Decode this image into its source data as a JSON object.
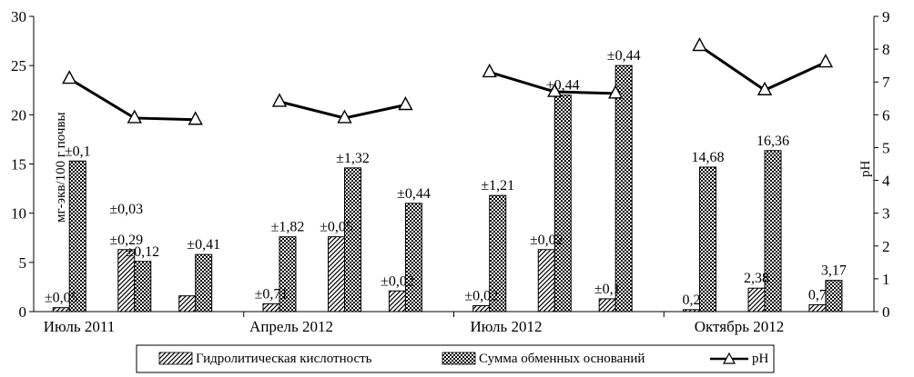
{
  "chart_data": {
    "type": "bar",
    "title": "",
    "groups": [
      "Июль 2011",
      "Апрель 2012",
      "Июль 2012",
      "Октябрь 2012"
    ],
    "ylabel_left": "мг-экв/100 г почвы",
    "ylabel_right": "pH",
    "ylim_left": [
      0,
      30
    ],
    "yticks_left": [
      "0",
      "5",
      "10",
      "15",
      "20",
      "25",
      "30"
    ],
    "ylim_right": [
      0,
      9
    ],
    "yticks_right": [
      "0",
      "1",
      "2",
      "3",
      "4",
      "5",
      "6",
      "7",
      "8",
      "9"
    ],
    "grid": false,
    "legend_position": "bottom",
    "series": [
      {
        "name": "Гидролитическая кислотность",
        "pattern": "diagonal-hatch",
        "axis": "left",
        "values": [
          0.4,
          6.3,
          1.6,
          0.8,
          7.6,
          2.1,
          0.6,
          6.3,
          1.3,
          0.2,
          2.38,
          0.7
        ]
      },
      {
        "name": "Сумма обменных оснований",
        "pattern": "checker",
        "axis": "left",
        "values": [
          15.3,
          5.1,
          5.8,
          7.6,
          14.6,
          11.0,
          11.8,
          22.0,
          25.0,
          14.68,
          16.36,
          3.17
        ]
      },
      {
        "name": "pH",
        "type": "line",
        "marker": "triangle",
        "axis": "right",
        "values": [
          7.1,
          5.9,
          5.85,
          6.4,
          5.9,
          6.3,
          7.3,
          6.7,
          6.65,
          8.1,
          6.75,
          7.6
        ]
      }
    ],
    "annotations": [
      {
        "text": "±0,05",
        "series": "Гидролитическая кислотность",
        "index": 0
      },
      {
        "text": "±0,1",
        "series": "Сумма обменных оснований",
        "index": 0
      },
      {
        "text": "±0,29",
        "series": "Гидролитическая кислотность",
        "index": 1
      },
      {
        "text": "±0,03",
        "series": "Гидролитическая кислотность",
        "index": 1
      },
      {
        "text": "±0,12",
        "series": "Сумма обменных оснований",
        "index": 1
      },
      {
        "text": "±0,41",
        "series": "Сумма обменных оснований",
        "index": 2
      },
      {
        "text": "±0,71",
        "series": "Гидролитическая кислотность",
        "index": 3
      },
      {
        "text": "±1,82",
        "series": "Сумма обменных оснований",
        "index": 3
      },
      {
        "text": "±0,05",
        "series": "Гидролитическая кислотность",
        "index": 4
      },
      {
        "text": "±1,32",
        "series": "Сумма обменных оснований",
        "index": 4
      },
      {
        "text": "±0,02",
        "series": "Гидролитическая кислотность",
        "index": 5
      },
      {
        "text": "±0,44",
        "series": "Сумма обменных оснований",
        "index": 5
      },
      {
        "text": "±0,02",
        "series": "Гидролитическая кислотность",
        "index": 6
      },
      {
        "text": "±1,21",
        "series": "Сумма обменных оснований",
        "index": 6
      },
      {
        "text": "±0,02",
        "series": "Гидролитическая кислотность",
        "index": 7
      },
      {
        "text": "±0,44",
        "series": "Сумма обменных оснований",
        "index": 7
      },
      {
        "text": "±0,1",
        "series": "Гидролитическая кислотность",
        "index": 8
      },
      {
        "text": "±0,44",
        "series": "Сумма обменных оснований",
        "index": 8
      },
      {
        "text": "0,2",
        "series": "Гидролитическая кислотность",
        "index": 9
      },
      {
        "text": "14,68",
        "series": "Сумма обменных оснований",
        "index": 9
      },
      {
        "text": "2,38",
        "series": "Гидролитическая кислотность",
        "index": 10
      },
      {
        "text": "16,36",
        "series": "Сумма обменных оснований",
        "index": 10
      },
      {
        "text": "0,7",
        "series": "Гидролитическая кислотность",
        "index": 11
      },
      {
        "text": "3,17",
        "series": "Сумма обменных оснований",
        "index": 11
      }
    ]
  }
}
